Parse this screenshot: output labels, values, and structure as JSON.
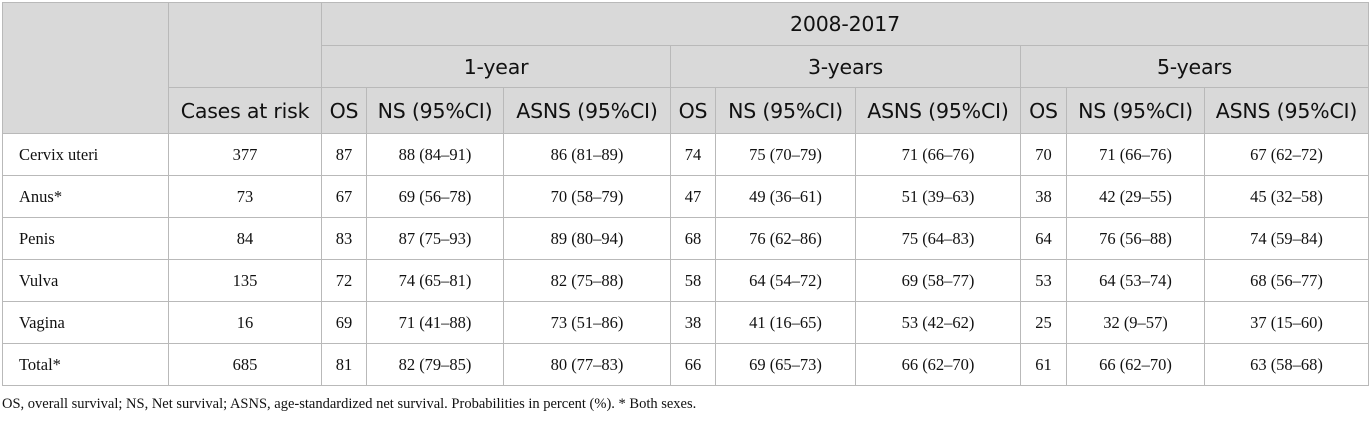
{
  "table": {
    "period": "2008-2017",
    "horizons": [
      "1-year",
      "3-years",
      "5-years"
    ],
    "col_cases": "Cases at risk",
    "col_os": "OS",
    "col_ns": "NS (95%CI)",
    "col_asns": "ASNS (95%CI)",
    "rows": [
      {
        "site": "Cervix uteri",
        "cases": "377",
        "y1": [
          "87",
          "88 (84–91)",
          "86 (81–89)"
        ],
        "y3": [
          "74",
          "75 (70–79)",
          "71 (66–76)"
        ],
        "y5": [
          "70",
          "71 (66–76)",
          "67 (62–72)"
        ]
      },
      {
        "site": "Anus*",
        "cases": "73",
        "y1": [
          "67",
          "69 (56–78)",
          "70 (58–79)"
        ],
        "y3": [
          "47",
          "49 (36–61)",
          "51 (39–63)"
        ],
        "y5": [
          "38",
          "42 (29–55)",
          "45 (32–58)"
        ]
      },
      {
        "site": "Penis",
        "cases": "84",
        "y1": [
          "83",
          "87 (75–93)",
          "89 (80–94)"
        ],
        "y3": [
          "68",
          "76 (62–86)",
          "75 (64–83)"
        ],
        "y5": [
          "64",
          "76 (56–88)",
          "74 (59–84)"
        ]
      },
      {
        "site": "Vulva",
        "cases": "135",
        "y1": [
          "72",
          "74 (65–81)",
          "82 (75–88)"
        ],
        "y3": [
          "58",
          "64 (54–72)",
          "69 (58–77)"
        ],
        "y5": [
          "53",
          "64 (53–74)",
          "68 (56–77)"
        ]
      },
      {
        "site": "Vagina",
        "cases": "16",
        "y1": [
          "69",
          "71 (41–88)",
          "73 (51–86)"
        ],
        "y3": [
          "38",
          "41 (16–65)",
          "53 (42–62)"
        ],
        "y5": [
          "25",
          "32 (9–57)",
          "37 (15–60)"
        ]
      },
      {
        "site": "Total*",
        "cases": "685",
        "y1": [
          "81",
          "82 (79–85)",
          "80 (77–83)"
        ],
        "y3": [
          "66",
          "69 (65–73)",
          "66 (62–70)"
        ],
        "y5": [
          "61",
          "66 (62–70)",
          "63 (58–68)"
        ]
      }
    ]
  },
  "footnote": "OS, overall survival; NS, Net survival; ASNS, age-standardized net survival. Probabilities in percent (%). * Both sexes."
}
